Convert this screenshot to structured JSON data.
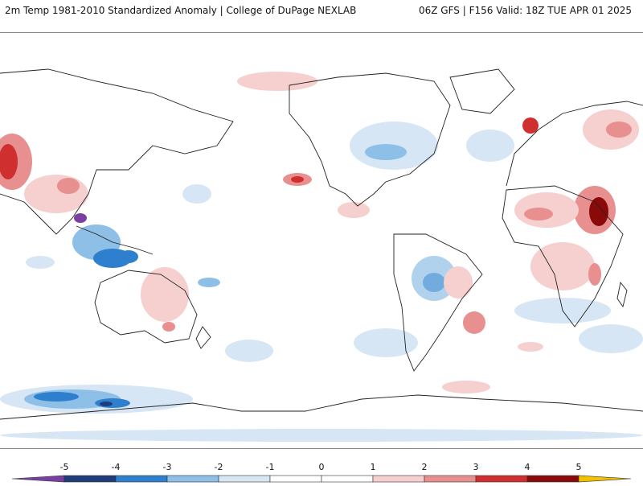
{
  "header": {
    "title": "2m Temp 1981-2010 Standardized Anomaly | College of DuPage NEXLAB",
    "run_info": "06Z GFS | F156 Valid: 18Z TUE APR 01 2025"
  },
  "colorbar": {
    "ticks": [
      "-5",
      "-4",
      "-3",
      "-2",
      "-1",
      "0",
      "1",
      "2",
      "3",
      "4",
      "5"
    ],
    "colors": [
      "#7a3fa3",
      "#1f3d7a",
      "#2f7fcf",
      "#8ebfe6",
      "#d6e6f5",
      "#ffffff",
      "#ffffff",
      "#f6cfcf",
      "#e88f8f",
      "#cf2f2f",
      "#8a0a0a",
      "#f2c200"
    ]
  },
  "map": {
    "projection": "global equirectangular (Pacific-centered)",
    "legend_placement": "bottom"
  }
}
